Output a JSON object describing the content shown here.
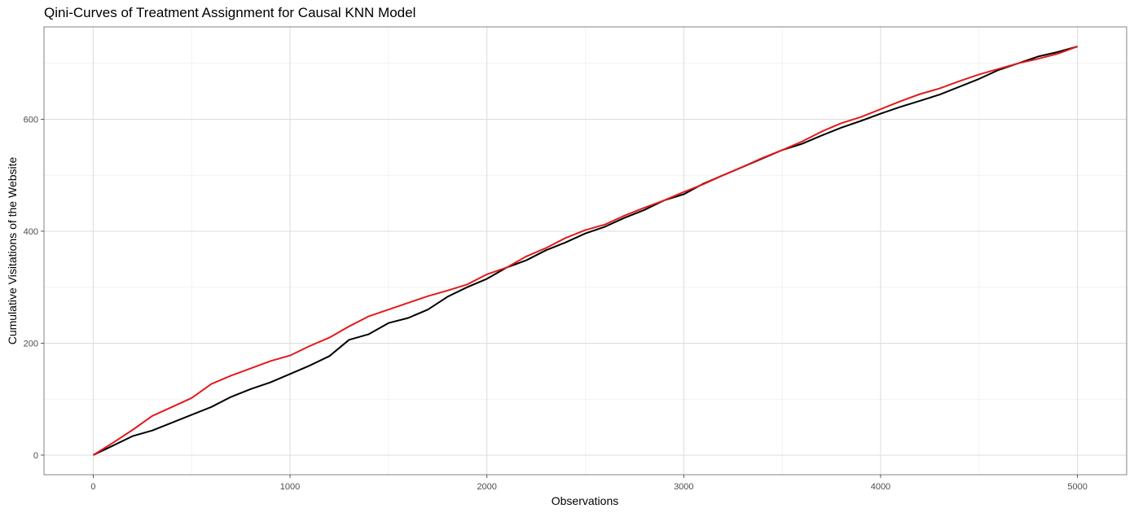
{
  "chart_data": {
    "type": "line",
    "title": "Qini-Curves of Treatment Assignment for Causal KNN Model",
    "xlabel": "Observations",
    "ylabel": "Cumulative Visitations of the Website",
    "xlim": [
      -250,
      5250
    ],
    "ylim": [
      -35,
      765
    ],
    "xticks": [
      0,
      1000,
      2000,
      3000,
      4000,
      5000
    ],
    "yticks": [
      0,
      200,
      400,
      600
    ],
    "grid": true,
    "legend": "none",
    "series": [
      {
        "color": "#000000",
        "x": [
          0,
          100,
          200,
          300,
          400,
          500,
          600,
          700,
          800,
          900,
          1000,
          1100,
          1200,
          1300,
          1400,
          1500,
          1600,
          1700,
          1800,
          1900,
          2000,
          2100,
          2200,
          2300,
          2400,
          2500,
          2600,
          2700,
          2800,
          2900,
          3000,
          3100,
          3200,
          3300,
          3400,
          3500,
          3600,
          3700,
          3800,
          3900,
          4000,
          4100,
          4200,
          4300,
          4400,
          4500,
          4600,
          4700,
          4800,
          4900,
          5000
        ],
        "y": [
          0,
          17,
          34,
          44,
          58,
          72,
          86,
          104,
          118,
          130,
          145,
          160,
          177,
          206,
          216,
          236,
          245,
          260,
          283,
          300,
          315,
          335,
          348,
          366,
          380,
          396,
          408,
          424,
          438,
          455,
          466,
          485,
          500,
          515,
          530,
          545,
          556,
          571,
          585,
          597,
          610,
          622,
          633,
          644,
          658,
          672,
          688,
          700,
          712,
          720,
          730
        ]
      },
      {
        "color": "#e31a1c",
        "x": [
          0,
          100,
          200,
          300,
          400,
          500,
          600,
          700,
          800,
          900,
          1000,
          1100,
          1200,
          1300,
          1400,
          1500,
          1600,
          1700,
          1800,
          1900,
          2000,
          2100,
          2200,
          2300,
          2400,
          2500,
          2600,
          2700,
          2800,
          2900,
          3000,
          3100,
          3200,
          3300,
          3400,
          3500,
          3600,
          3700,
          3800,
          3900,
          4000,
          4100,
          4200,
          4300,
          4400,
          4500,
          4600,
          4700,
          4800,
          4900,
          5000
        ],
        "y": [
          0,
          22,
          45,
          70,
          86,
          102,
          127,
          142,
          155,
          168,
          178,
          195,
          210,
          230,
          248,
          260,
          272,
          284,
          294,
          305,
          323,
          335,
          355,
          370,
          388,
          402,
          412,
          428,
          442,
          455,
          470,
          484,
          500,
          515,
          531,
          545,
          560,
          578,
          593,
          604,
          618,
          632,
          645,
          655,
          668,
          680,
          690,
          700,
          708,
          717,
          730
        ]
      }
    ]
  }
}
